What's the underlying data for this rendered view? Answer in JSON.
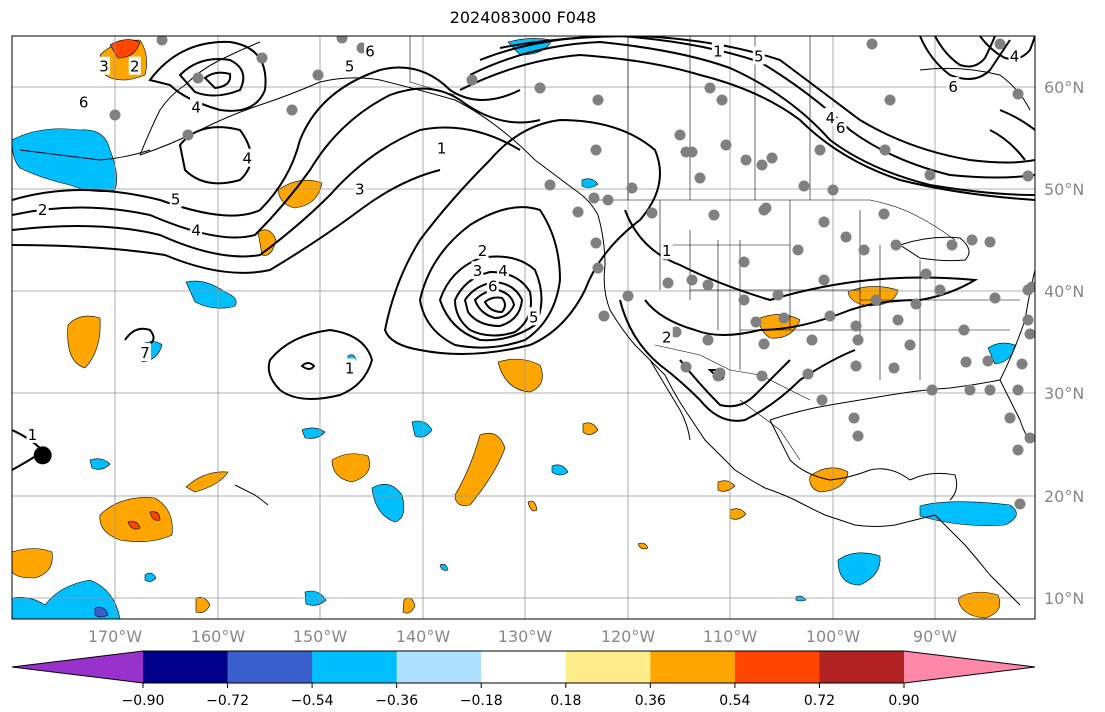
{
  "title": "2024083000 F048",
  "map": {
    "projection": "Plate Carree",
    "extent_lon": [
      -180,
      -80
    ],
    "extent_lat": [
      8,
      65
    ],
    "lon_ticks": [
      "170°W",
      "160°W",
      "150°W",
      "140°W",
      "130°W",
      "120°W",
      "110°W",
      "100°W",
      "90°W"
    ],
    "lat_ticks": [
      "60°N",
      "50°N",
      "40°N",
      "30°N",
      "20°N",
      "10°N"
    ],
    "gridlines": true,
    "coastlines": true,
    "borders": true,
    "contour_color": "#000000",
    "station_color": "#808080"
  },
  "contour_labels": [
    {
      "text": "3",
      "lon": -171,
      "lat": 62
    },
    {
      "text": "2",
      "lon": -168,
      "lat": 62
    },
    {
      "text": "6",
      "lon": -173,
      "lat": 58.5
    },
    {
      "text": "4",
      "lon": -162,
      "lat": 58
    },
    {
      "text": "4",
      "lon": -157,
      "lat": 53
    },
    {
      "text": "5",
      "lon": -147,
      "lat": 62
    },
    {
      "text": "6",
      "lon": -145,
      "lat": 63.5
    },
    {
      "text": "5",
      "lon": -164,
      "lat": 49
    },
    {
      "text": "4",
      "lon": -162,
      "lat": 46
    },
    {
      "text": "2",
      "lon": -177,
      "lat": 48
    },
    {
      "text": "3",
      "lon": -146,
      "lat": 50
    },
    {
      "text": "1",
      "lon": -138,
      "lat": 54
    },
    {
      "text": "2",
      "lon": -134,
      "lat": 44
    },
    {
      "text": "3",
      "lon": -134.5,
      "lat": 42
    },
    {
      "text": "4",
      "lon": -132,
      "lat": 42
    },
    {
      "text": "6",
      "lon": -133,
      "lat": 40.5
    },
    {
      "text": "5",
      "lon": -129,
      "lat": 37.5
    },
    {
      "text": "1",
      "lon": -147,
      "lat": 32.5
    },
    {
      "text": "7",
      "lon": -167,
      "lat": 34
    },
    {
      "text": "1",
      "lon": -178,
      "lat": 26
    },
    {
      "text": "1",
      "lon": -116,
      "lat": 44
    },
    {
      "text": "2",
      "lon": -116,
      "lat": 35.5
    },
    {
      "text": "5",
      "lon": -107,
      "lat": 63
    },
    {
      "text": "6",
      "lon": -99,
      "lat": 56
    },
    {
      "text": "4",
      "lon": -100,
      "lat": 57
    },
    {
      "text": "6",
      "lon": -88,
      "lat": 60
    },
    {
      "text": "4",
      "lon": -82,
      "lat": 63
    },
    {
      "text": "1",
      "lon": -111,
      "lat": 63.5
    }
  ],
  "low_center": {
    "lon": -177,
    "lat": 24
  },
  "colorbar": {
    "colors": [
      "#9932cc",
      "#00008b",
      "#3a5fcd",
      "#00bfff",
      "#b0e2ff",
      "#ffffff",
      "#ffec8b",
      "#ffa500",
      "#ff4500",
      "#b22222",
      "#ff88aa"
    ],
    "ticks": [
      "−0.90",
      "−0.72",
      "−0.54",
      "−0.36",
      "−0.18",
      "0.18",
      "0.36",
      "0.54",
      "0.72",
      "0.90"
    ]
  }
}
